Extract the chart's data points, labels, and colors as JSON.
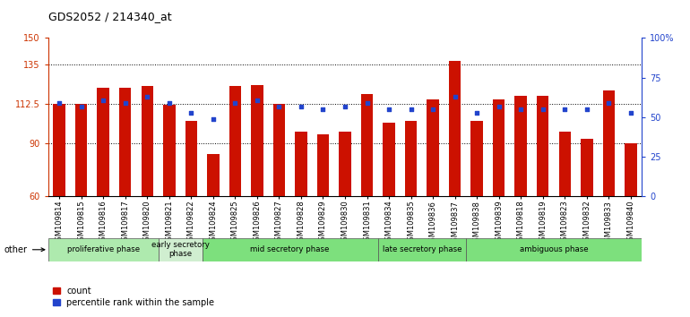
{
  "title": "GDS2052 / 214340_at",
  "samples": [
    "GSM109814",
    "GSM109815",
    "GSM109816",
    "GSM109817",
    "GSM109820",
    "GSM109821",
    "GSM109822",
    "GSM109824",
    "GSM109825",
    "GSM109826",
    "GSM109827",
    "GSM109828",
    "GSM109829",
    "GSM109830",
    "GSM109831",
    "GSM109834",
    "GSM109835",
    "GSM109836",
    "GSM109837",
    "GSM109838",
    "GSM109839",
    "GSM109818",
    "GSM109819",
    "GSM109823",
    "GSM109832",
    "GSM109833",
    "GSM109840"
  ],
  "bar_values": [
    112.5,
    112.5,
    122.0,
    122.0,
    123.0,
    112.0,
    103.0,
    84.0,
    123.0,
    123.5,
    112.5,
    97.0,
    95.5,
    97.0,
    118.0,
    102.0,
    103.0,
    115.0,
    137.0,
    103.0,
    115.0,
    117.0,
    117.0,
    97.0,
    93.0,
    120.0,
    90.0
  ],
  "percentile_values": [
    59.0,
    57.0,
    61.0,
    59.0,
    63.0,
    59.0,
    53.0,
    49.0,
    59.0,
    61.0,
    57.0,
    57.0,
    55.0,
    57.0,
    59.0,
    55.0,
    55.0,
    55.0,
    63.0,
    53.0,
    57.0,
    55.0,
    55.0,
    55.0,
    55.0,
    59.0,
    53.0
  ],
  "phase_groups": [
    {
      "label": "proliferative phase",
      "start": 0,
      "end": 5,
      "color": "#aeeaae"
    },
    {
      "label": "early secretory\nphase",
      "start": 5,
      "end": 7,
      "color": "#d0eed0"
    },
    {
      "label": "mid secretory phase",
      "start": 7,
      "end": 15,
      "color": "#7de07d"
    },
    {
      "label": "late secretory phase",
      "start": 15,
      "end": 19,
      "color": "#7de07d"
    },
    {
      "label": "ambiguous phase",
      "start": 19,
      "end": 27,
      "color": "#7de07d"
    }
  ],
  "bar_color": "#cc1100",
  "percentile_color": "#2244cc",
  "ylim_left": [
    60,
    150
  ],
  "ylim_right": [
    0,
    100
  ],
  "yticks_left": [
    60,
    90,
    112.5,
    135,
    150
  ],
  "ytick_labels_left": [
    "60",
    "90",
    "112.5",
    "135",
    "150"
  ],
  "yticks_right": [
    0,
    25,
    50,
    75,
    100
  ],
  "ytick_labels_right": [
    "0",
    "25",
    "50",
    "75",
    "100%"
  ],
  "hlines": [
    90,
    112.5,
    135
  ],
  "background_color": "#ffffff",
  "bar_width": 0.55
}
